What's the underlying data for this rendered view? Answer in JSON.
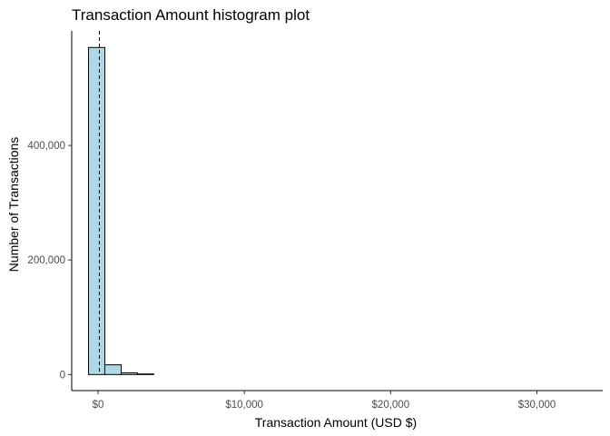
{
  "chart_data": {
    "type": "bar",
    "title": "Transaction Amount histogram plot",
    "xlabel": "Transaction Amount (USD $)",
    "ylabel": "Number of Transactions",
    "x_ticks": [
      {
        "value": 0,
        "label": "$0"
      },
      {
        "value": 10000,
        "label": "$10,000"
      },
      {
        "value": 20000,
        "label": "$20,000"
      },
      {
        "value": 30000,
        "label": "$30,000"
      }
    ],
    "y_ticks": [
      {
        "value": 0,
        "label": "0"
      },
      {
        "value": 200000,
        "label": "200,000"
      },
      {
        "value": 400000,
        "label": "400,000"
      }
    ],
    "xlim": [
      -1800,
      34500
    ],
    "ylim": [
      -28000,
      600000
    ],
    "bin_width": 1115,
    "first_bin_start": -651,
    "bins": [
      {
        "x0": -651,
        "x1": 464,
        "count": 571000
      },
      {
        "x0": 464,
        "x1": 1579,
        "count": 17000
      },
      {
        "x0": 1579,
        "x1": 2694,
        "count": 3000
      },
      {
        "x0": 2694,
        "x1": 3809,
        "count": 1000
      },
      {
        "x0": 3809,
        "x1": 32560,
        "count": 0
      }
    ],
    "mean_line_x": 90,
    "grid": false,
    "colors": {
      "bar_fill": "#add8e6",
      "bar_stroke": "#000000",
      "axis": "#000000"
    }
  }
}
